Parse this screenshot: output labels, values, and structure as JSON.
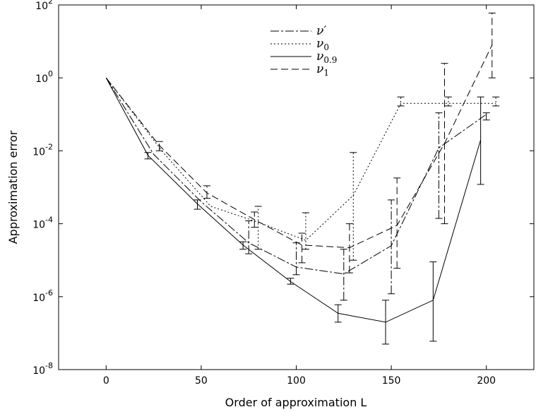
{
  "chart_data": {
    "type": "line",
    "title": "",
    "xlabel": "Order of approximation L",
    "ylabel": "Approximation error",
    "x_axis": {
      "range": [
        -25,
        225
      ],
      "ticks": [
        {
          "value": 0,
          "label": "0"
        },
        {
          "value": 50,
          "label": "50"
        },
        {
          "value": 100,
          "label": "100"
        },
        {
          "value": 150,
          "label": "150"
        },
        {
          "value": 200,
          "label": "200"
        }
      ]
    },
    "y_axis": {
      "scale": "log",
      "range": [
        1e-08,
        100
      ],
      "ticks": [
        {
          "value": 1e-08,
          "base": "10",
          "exp": "-8"
        },
        {
          "value": 1e-06,
          "base": "10",
          "exp": "-6"
        },
        {
          "value": 0.0001,
          "base": "10",
          "exp": "-4"
        },
        {
          "value": 0.01,
          "base": "10",
          "exp": "-2"
        },
        {
          "value": 1,
          "base": "10",
          "exp": "0"
        },
        {
          "value": 100,
          "base": "10",
          "exp": "2"
        }
      ]
    },
    "grid": false,
    "legend_position": "top-center",
    "series": [
      {
        "name": "ν′",
        "legend_main": "ν",
        "legend_sub": "",
        "legend_prime": "′",
        "dash": "12,3,3,3",
        "x": [
          0,
          25,
          50,
          75,
          100,
          125,
          150,
          175,
          200
        ],
        "y": [
          1,
          0.008,
          0.0004,
          3e-05,
          6.5e-06,
          4.2e-06,
          2.5e-05,
          0.012,
          0.1
        ],
        "err_low": [
          null,
          null,
          null,
          1.5e-05,
          4e-06,
          8e-07,
          1.2e-06,
          0.00014,
          0.07
        ],
        "err_high": [
          null,
          null,
          null,
          0.00012,
          3e-05,
          2e-05,
          0.00045,
          0.11,
          0.11
        ]
      },
      {
        "name": "ν0",
        "legend_main": "ν",
        "legend_sub": "0",
        "legend_prime": "",
        "dash": "2,3",
        "x": [
          0,
          30,
          55,
          80,
          105,
          130,
          155,
          180,
          205
        ],
        "y": [
          1,
          0.009,
          0.0003,
          0.00011,
          3.5e-05,
          0.0006,
          0.2,
          0.2,
          0.2
        ],
        "err_low": [
          null,
          null,
          null,
          2e-05,
          2e-05,
          1e-05,
          0.17,
          0.17,
          0.17
        ],
        "err_high": [
          null,
          null,
          null,
          0.0003,
          0.0002,
          0.009,
          0.3,
          0.3,
          0.3
        ]
      },
      {
        "name": "ν0.9",
        "legend_main": "ν",
        "legend_sub": "0.9",
        "legend_prime": "",
        "dash": "",
        "x": [
          0,
          22,
          48,
          72,
          97,
          122,
          147,
          172,
          197
        ],
        "y": [
          1,
          0.0075,
          0.00035,
          2.6e-05,
          2.6e-06,
          3.5e-07,
          2e-07,
          8e-07,
          0.02
        ],
        "err_low": [
          null,
          0.006,
          0.00025,
          2e-05,
          2.2e-06,
          2e-07,
          5e-08,
          6e-08,
          0.0012
        ],
        "err_high": [
          null,
          0.009,
          0.00045,
          3.2e-05,
          3.2e-06,
          6e-07,
          8e-07,
          9e-06,
          0.3
        ]
      },
      {
        "name": "ν1",
        "legend_main": "ν",
        "legend_sub": "1",
        "legend_prime": "",
        "dash": "10,5",
        "x": [
          0,
          28,
          53,
          78,
          103,
          128,
          153,
          178,
          203
        ],
        "y": [
          1,
          0.014,
          0.0007,
          0.00013,
          2.6e-05,
          2.2e-05,
          9e-05,
          0.016,
          8
        ],
        "err_low": [
          null,
          0.01,
          0.0005,
          8e-05,
          8.5e-06,
          4.5e-06,
          6e-06,
          0.0001,
          1
        ],
        "err_high": [
          null,
          0.018,
          0.0011,
          0.00021,
          5.5e-05,
          0.0001,
          0.0018,
          2.5,
          60
        ]
      }
    ]
  }
}
